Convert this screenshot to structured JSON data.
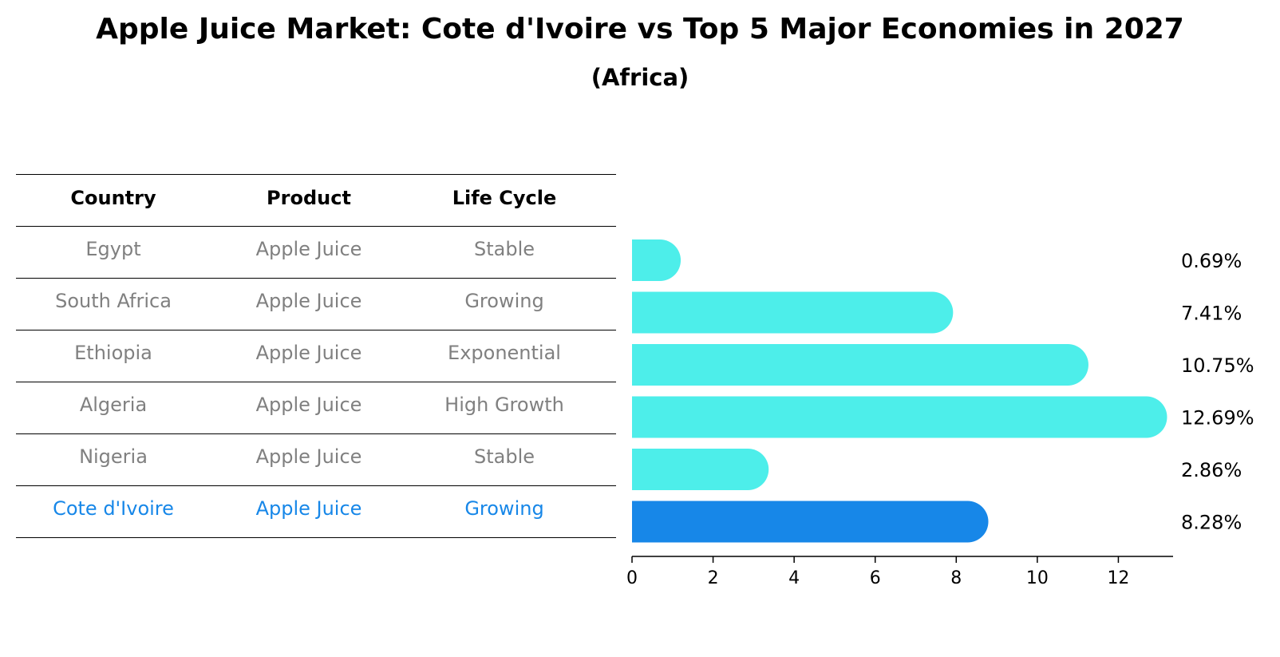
{
  "chart_data": {
    "type": "bar",
    "orientation": "horizontal",
    "title": "Apple Juice Market: Cote d'Ivoire vs Top 5 Major Economies in 2027",
    "subtitle": "(Africa)",
    "table": {
      "columns": [
        "Country",
        "Product",
        "Life Cycle"
      ],
      "rows": [
        {
          "country": "Egypt",
          "product": "Apple Juice",
          "life_cycle": "Stable"
        },
        {
          "country": "South Africa",
          "product": "Apple Juice",
          "life_cycle": "Growing"
        },
        {
          "country": "Ethiopia",
          "product": "Apple Juice",
          "life_cycle": "Exponential"
        },
        {
          "country": "Algeria",
          "product": "Apple Juice",
          "life_cycle": "High Growth"
        },
        {
          "country": "Nigeria",
          "product": "Apple Juice",
          "life_cycle": "Stable"
        },
        {
          "country": "Cote d'Ivoire",
          "product": "Apple Juice",
          "life_cycle": "Growing"
        }
      ]
    },
    "categories": [
      "Egypt",
      "South Africa",
      "Ethiopia",
      "Algeria",
      "Nigeria",
      "Cote d'Ivoire"
    ],
    "values": [
      0.69,
      7.41,
      10.75,
      12.69,
      2.86,
      8.28
    ],
    "value_labels": [
      "0.69%",
      "7.41%",
      "10.75%",
      "12.69%",
      "2.86%",
      "8.28%"
    ],
    "highlight": "Cote d'Ivoire",
    "xlim": [
      0,
      13.35
    ],
    "xticks": [
      0,
      2,
      4,
      6,
      8,
      10,
      12
    ],
    "xlabel": "",
    "ylabel": "",
    "colors": {
      "bar": "#4deeea",
      "highlight": "#1787e8",
      "text_muted": "#808080"
    }
  }
}
